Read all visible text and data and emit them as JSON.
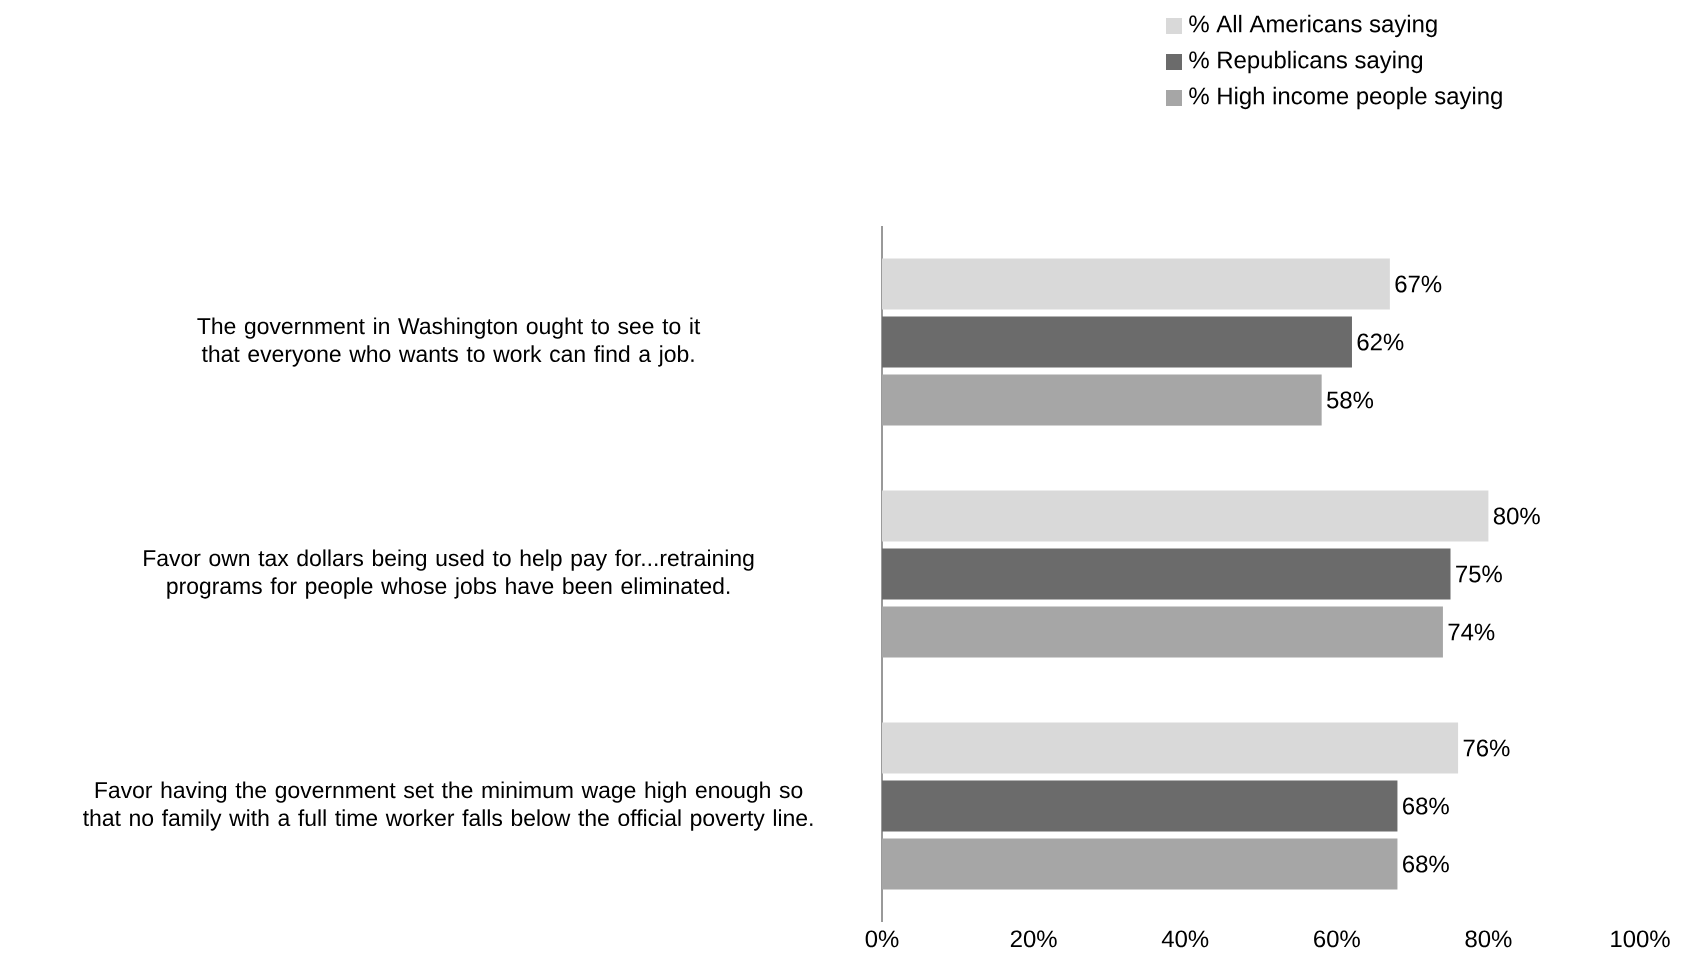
{
  "chart_data": {
    "type": "bar",
    "orientation": "horizontal",
    "categories": [
      "The government in Washington ought to see to it that everyone who wants to work can find a job.",
      "Favor own tax dollars being used to help pay for...retraining programs for people whose jobs have been eliminated.",
      "Favor having the government set the minimum wage high enough so that no family with a full time worker falls below the official poverty line."
    ],
    "series": [
      {
        "name": "% All Americans saying",
        "color": "#d9d9d9",
        "values": [
          67,
          80,
          76
        ],
        "value_labels": [
          "67%",
          "80%",
          "76%"
        ]
      },
      {
        "name": "% Republicans saying",
        "color": "#6b6b6b",
        "values": [
          62,
          75,
          68
        ],
        "value_labels": [
          "62%",
          "75%",
          "68%"
        ]
      },
      {
        "name": "% High income people saying",
        "color": "#a6a6a6",
        "values": [
          58,
          74,
          68
        ],
        "value_labels": [
          "58%",
          "74%",
          "68%"
        ]
      }
    ],
    "xlim": [
      0,
      100
    ],
    "xticks": [
      {
        "value": 0,
        "label": "0%"
      },
      {
        "value": 20,
        "label": "20%"
      },
      {
        "value": 40,
        "label": "40%"
      },
      {
        "value": 60,
        "label": "60%"
      },
      {
        "value": 80,
        "label": "80%"
      },
      {
        "value": 100,
        "label": "100%"
      }
    ],
    "legend": "top",
    "grid": false
  }
}
